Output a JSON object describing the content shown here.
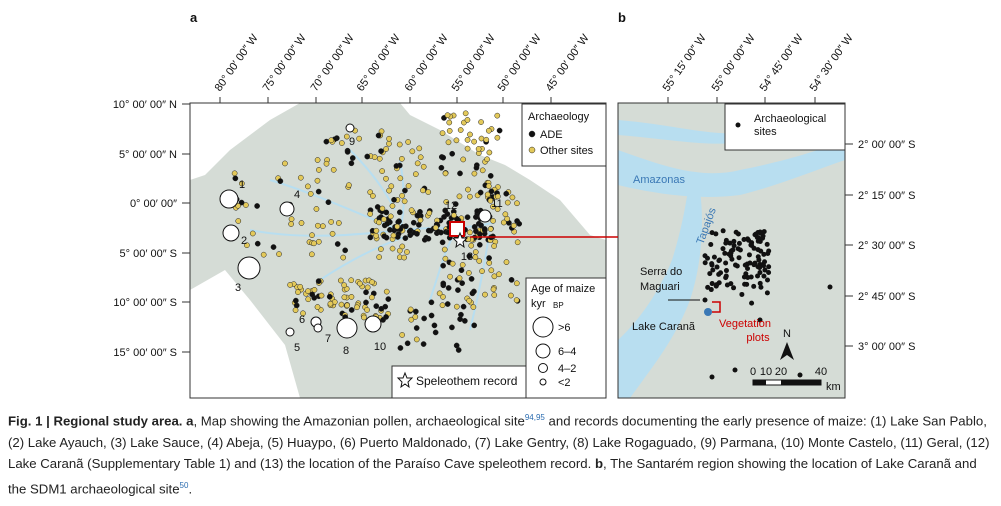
{
  "panel_a": {
    "label": "a",
    "longitudes": [
      "80° 00′ 00″ W",
      "75° 00′ 00″ W",
      "70° 00′ 00″ W",
      "65° 00′ 00″ W",
      "60° 00′ 00″ W",
      "55° 00′ 00″ W",
      "50° 00′ 00″ W",
      "45° 00′ 00″ W"
    ],
    "latitudes": [
      "10° 00′ 00″ N",
      "5° 00′ 00″ N",
      "0° 00′ 00″",
      "5° 00′ 00″ S",
      "10° 00′ 00″ S",
      "15° 00′ 00″ S"
    ],
    "legend": {
      "title": "Archaeology",
      "items": [
        "ADE",
        "Other sites"
      ]
    },
    "site_labels": [
      "1",
      "2",
      "3",
      "4",
      "5",
      "6",
      "7",
      "8",
      "9",
      "10",
      "11",
      "12",
      "13"
    ],
    "maize_legend": {
      "title": "Age of maize",
      "unit": "kyr",
      "unit_sub": "BP",
      "items": [
        ">6",
        "6–4",
        "4–2",
        "<2"
      ]
    },
    "speleothem": "Speleothem record"
  },
  "panel_b": {
    "label": "b",
    "longitudes": [
      "55° 15′ 00″ W",
      "55° 00′ 00″ W",
      "54° 45′ 00″ W",
      "54° 30′ 00″ W"
    ],
    "latitudes": [
      "2° 00′ 00″ S",
      "2° 15′ 00″ S",
      "2° 30′ 00″ S",
      "2° 45′ 00″ S",
      "3° 00′ 00″ S"
    ],
    "legend": "Archaeological sites",
    "rivers": [
      "Amazonas",
      "Tapajós"
    ],
    "places": [
      "Serra do Maguari",
      "Lake Caranã",
      "Vegetation plots"
    ],
    "north": "N",
    "scale": [
      "0",
      "10",
      "20",
      "40"
    ],
    "scale_unit": "km"
  },
  "caption": {
    "label": "Fig. 1 | Regional study area.",
    "panel_a": "a",
    "text_a1": ", Map showing the Amazonian pollen, archaeological site",
    "ref_a": "94,95",
    "text_a2": " and records documenting the early presence of maize: (1) Lake San Pablo, (2) Lake Ayauch, (3) Lake Sauce, (4) Abeja, (5) Huaypo, (6) Puerto Maldonado, (7) Lake Gentry, (8) Lake Rogaguado, (9) Parmana, (10) Monte Castelo, (11) Geral, (12) Lake Caranã (Supplementary Table 1) and (13) the location of the Paraíso Cave speleothem record. ",
    "panel_b": "b",
    "text_b": ", The Santarém region showing the location of Lake Caranã and the SDM1 archaeological site",
    "ref_b": "50",
    "end": "."
  }
}
